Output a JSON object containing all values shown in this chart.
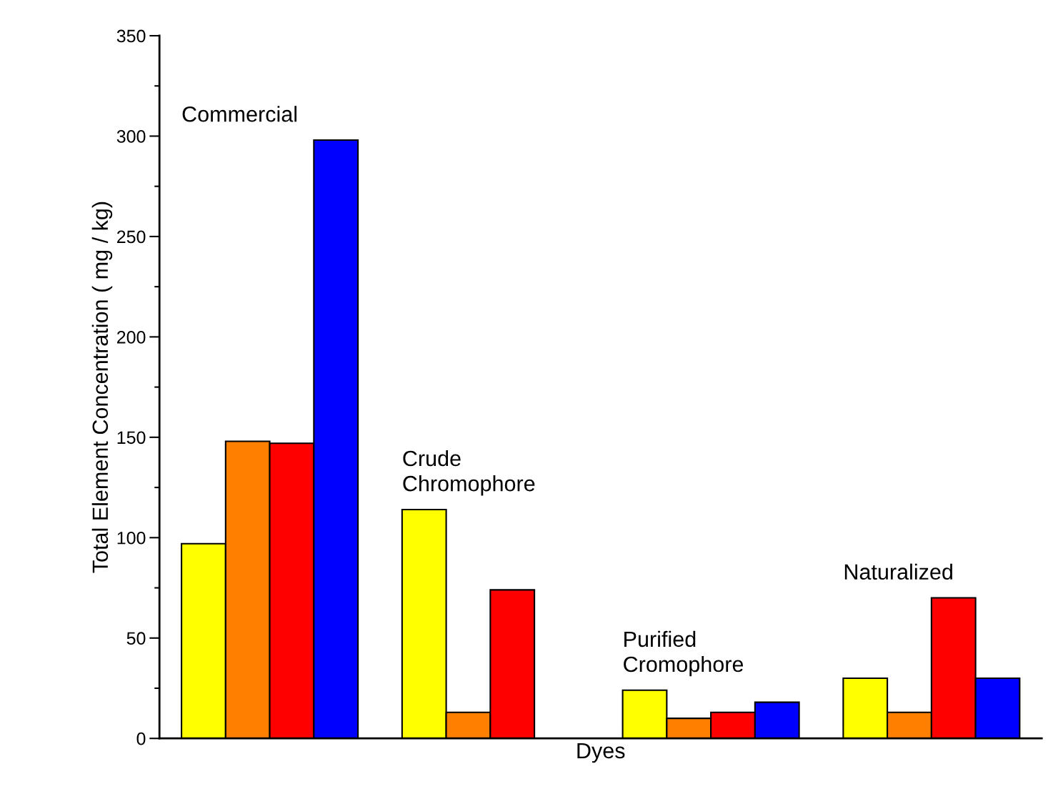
{
  "chart_data": {
    "type": "bar",
    "categories": [
      "Commercial",
      "Crude\nChromophore",
      "Purified\nCromophore",
      "Naturalized"
    ],
    "series": [
      {
        "color": "#ffff00",
        "values": [
          97,
          114,
          24,
          30
        ]
      },
      {
        "color": "#ff8000",
        "values": [
          148,
          13,
          10,
          13
        ]
      },
      {
        "color": "#ff0000",
        "values": [
          147,
          74,
          13,
          70
        ]
      },
      {
        "color": "#0000ff",
        "values": [
          298,
          null,
          18,
          30
        ]
      }
    ],
    "xlabel": "Dyes",
    "ylabel": "Total Element Concentration ( mg / kg)",
    "ylim": [
      0,
      350
    ],
    "yticks": [
      0,
      50,
      100,
      150,
      200,
      250,
      300,
      350
    ],
    "grid": false,
    "legend": false
  }
}
